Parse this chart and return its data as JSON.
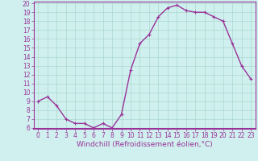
{
  "x": [
    0,
    1,
    2,
    3,
    4,
    5,
    6,
    7,
    8,
    9,
    10,
    11,
    12,
    13,
    14,
    15,
    16,
    17,
    18,
    19,
    20,
    21,
    22,
    23
  ],
  "y": [
    9.0,
    9.5,
    8.5,
    7.0,
    6.5,
    6.5,
    6.0,
    6.5,
    6.0,
    7.5,
    12.5,
    15.5,
    16.5,
    18.5,
    19.5,
    19.8,
    19.2,
    19.0,
    19.0,
    18.5,
    18.0,
    15.5,
    13.0,
    11.5
  ],
  "line_color": "#993399",
  "marker": "+",
  "markersize": 3,
  "linewidth": 1.0,
  "markeredgewidth": 0.8,
  "xlabel": "Windchill (Refroidissement éolien,°C)",
  "xlabel_fontsize": 6.5,
  "bg_color": "#cff0ee",
  "grid_color": "#aad8cc",
  "tick_color": "#993399",
  "label_color": "#993399",
  "ylim": [
    6,
    20
  ],
  "xlim": [
    -0.5,
    23.5
  ],
  "yticks": [
    6,
    7,
    8,
    9,
    10,
    11,
    12,
    13,
    14,
    15,
    16,
    17,
    18,
    19,
    20
  ],
  "xticks": [
    0,
    1,
    2,
    3,
    4,
    5,
    6,
    7,
    8,
    9,
    10,
    11,
    12,
    13,
    14,
    15,
    16,
    17,
    18,
    19,
    20,
    21,
    22,
    23
  ],
  "tick_labelsize": 5.5
}
